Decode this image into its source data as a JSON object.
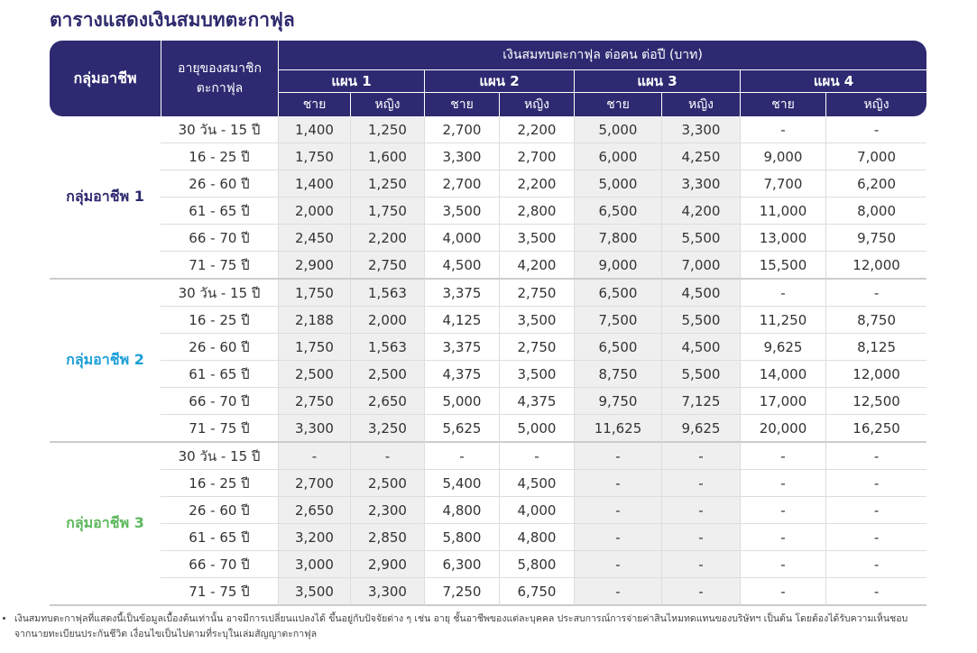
{
  "title": "ตารางแสดงเงินสมบทตะกาฟุล",
  "table": {
    "header": {
      "group": "กลุ่มอาชีพ",
      "age": [
        "อายุของสมาชิก",
        "ตะกาฟุล"
      ],
      "contribution": "เงินสมทบตะกาฟุล ต่อคน ต่อปี (บาท)",
      "plans": [
        "แผน 1",
        "แผน 2",
        "แผน 3",
        "แผน 4"
      ],
      "genders": [
        "ชาย",
        "หญิง",
        "ชาย",
        "หญิง",
        "ชาย",
        "หญิง",
        "ชาย",
        "หญิง"
      ]
    },
    "groups": [
      {
        "name": "กลุ่มอาชีพ 1",
        "color": "#2d2a6e",
        "rows": [
          [
            "30 วัน - 15 ปี",
            "1,400",
            "1,250",
            "2,700",
            "2,200",
            "5,000",
            "3,300",
            "-",
            "-"
          ],
          [
            "16 - 25 ปี",
            "1,750",
            "1,600",
            "3,300",
            "2,700",
            "6,000",
            "4,250",
            "9,000",
            "7,000"
          ],
          [
            "26 - 60 ปี",
            "1,400",
            "1,250",
            "2,700",
            "2,200",
            "5,000",
            "3,300",
            "7,700",
            "6,200"
          ],
          [
            "61 - 65 ปี",
            "2,000",
            "1,750",
            "3,500",
            "2,800",
            "6,500",
            "4,200",
            "11,000",
            "8,000"
          ],
          [
            "66 - 70 ปี",
            "2,450",
            "2,200",
            "4,000",
            "3,500",
            "7,800",
            "5,500",
            "13,000",
            "9,750"
          ],
          [
            "71 - 75 ปี",
            "2,900",
            "2,750",
            "4,500",
            "4,200",
            "9,000",
            "7,000",
            "15,500",
            "12,000"
          ]
        ]
      },
      {
        "name": "กลุ่มอาชีพ 2",
        "color": "#1c9fd8",
        "rows": [
          [
            "30 วัน - 15 ปี",
            "1,750",
            "1,563",
            "3,375",
            "2,750",
            "6,500",
            "4,500",
            "-",
            "-"
          ],
          [
            "16 - 25 ปี",
            "2,188",
            "2,000",
            "4,125",
            "3,500",
            "7,500",
            "5,500",
            "11,250",
            "8,750"
          ],
          [
            "26 - 60 ปี",
            "1,750",
            "1,563",
            "3,375",
            "2,750",
            "6,500",
            "4,500",
            "9,625",
            "8,125"
          ],
          [
            "61 - 65 ปี",
            "2,500",
            "2,500",
            "4,375",
            "3,500",
            "8,750",
            "5,500",
            "14,000",
            "12,000"
          ],
          [
            "66 - 70 ปี",
            "2,750",
            "2,650",
            "5,000",
            "4,375",
            "9,750",
            "7,125",
            "17,000",
            "12,500"
          ],
          [
            "71 - 75 ปี",
            "3,300",
            "3,250",
            "5,625",
            "5,000",
            "11,625",
            "9,625",
            "20,000",
            "16,250"
          ]
        ]
      },
      {
        "name": "กลุ่มอาชีพ 3",
        "color": "#5cb85c",
        "rows": [
          [
            "30 วัน - 15 ปี",
            "-",
            "-",
            "-",
            "-",
            "-",
            "-",
            "-",
            "-"
          ],
          [
            "16 - 25 ปี",
            "2,700",
            "2,500",
            "5,400",
            "4,500",
            "-",
            "-",
            "-",
            "-"
          ],
          [
            "26 - 60 ปี",
            "2,650",
            "2,300",
            "4,800",
            "4,000",
            "-",
            "-",
            "-",
            "-"
          ],
          [
            "61 - 65 ปี",
            "3,200",
            "2,850",
            "5,800",
            "4,800",
            "-",
            "-",
            "-",
            "-"
          ],
          [
            "66 - 70 ปี",
            "3,000",
            "2,900",
            "6,300",
            "5,800",
            "-",
            "-",
            "-",
            "-"
          ],
          [
            "71 - 75 ปี",
            "3,500",
            "3,300",
            "7,250",
            "6,750",
            "-",
            "-",
            "-",
            "-"
          ]
        ]
      }
    ]
  },
  "footnote": [
    "เงินสมทบตะกาฟุลที่แสดงนี้เป็นข้อมูลเบื้องต้นเท่านั้น อาจมีการเปลี่ยนแปลงได้ ขึ้นอยู่กับปัจจัยต่าง ๆ เช่น อายุ ชั้นอาชีพของแต่ละบุคคล ประสบการณ์การจ่ายค่าสินไหมทดแทนของบริษัทฯ เป็นต้น โดยต้องได้รับความเห็นชอบ",
    "จากนายทะเบียนประกันชีวิต เงื่อนไขเป็นไปตามที่ระบุในเล่มสัญญาตะกาฟุล"
  ]
}
